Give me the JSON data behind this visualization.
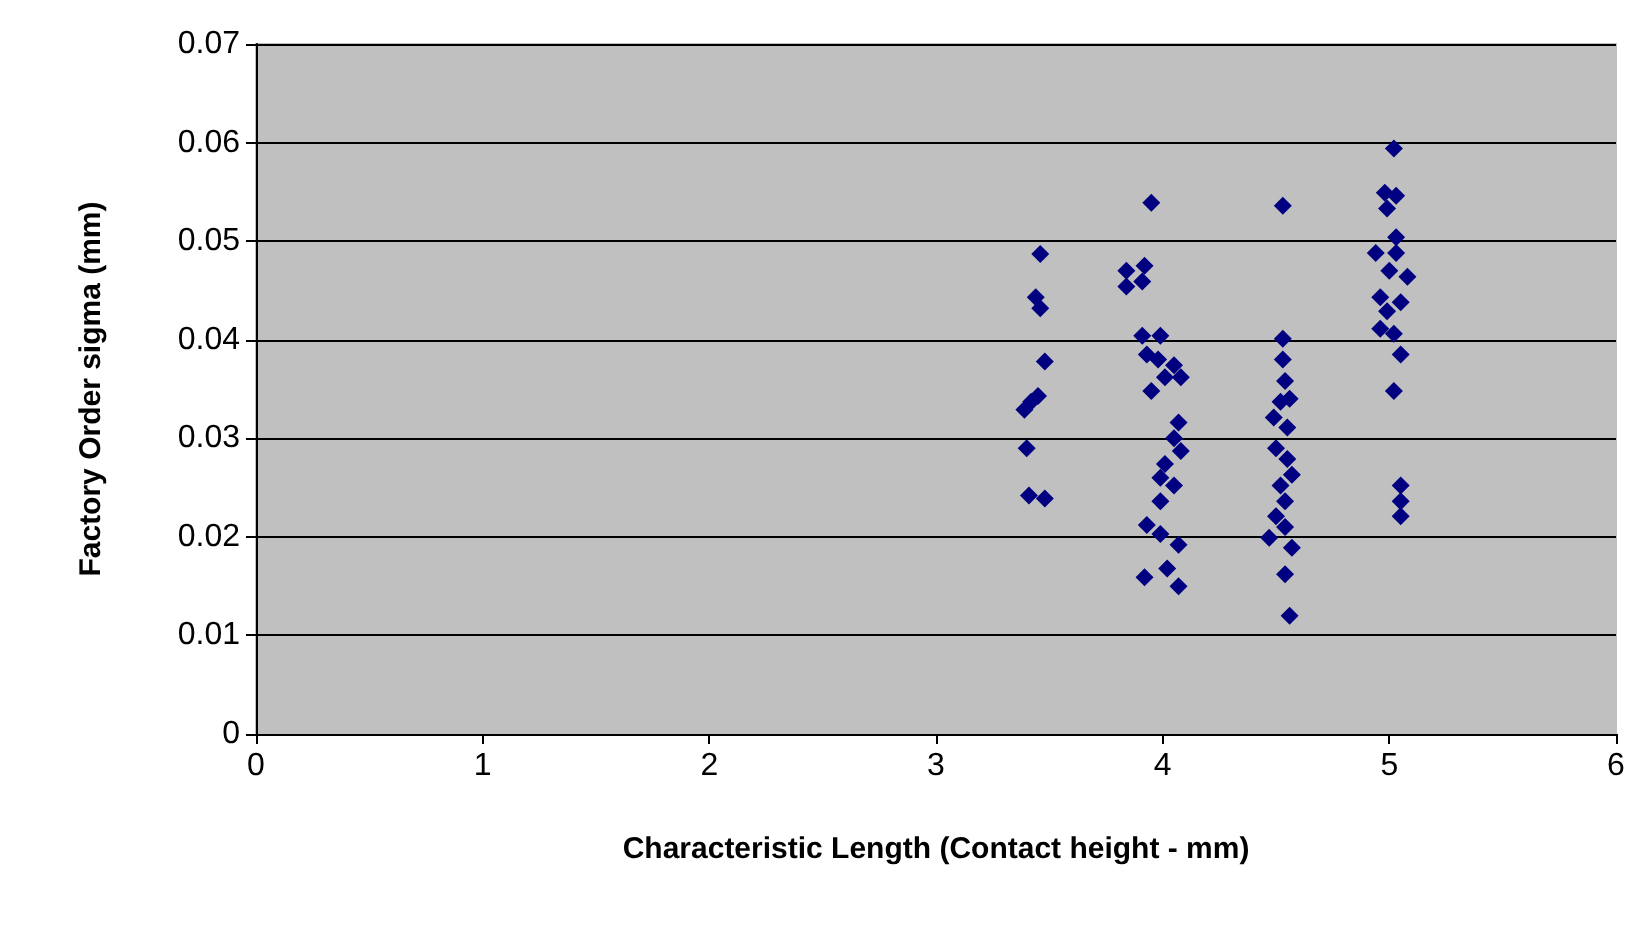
{
  "chart_data": {
    "type": "scatter",
    "xlabel": "Characteristic Length (Contact height - mm)",
    "ylabel": "Factory Order sigma (mm)",
    "series": [
      {
        "color": "#000080",
        "x": [
          3.46,
          3.44,
          3.46,
          3.48,
          3.45,
          3.42,
          3.39,
          3.4,
          3.41,
          3.48,
          3.95,
          3.84,
          3.92,
          3.84,
          3.91,
          3.91,
          3.99,
          3.93,
          3.98,
          4.05,
          4.01,
          4.08,
          3.95,
          4.07,
          4.05,
          4.08,
          4.01,
          3.99,
          4.05,
          3.99,
          3.93,
          3.99,
          4.07,
          4.02,
          3.92,
          4.07,
          4.53,
          4.53,
          4.53,
          4.54,
          4.52,
          4.56,
          4.49,
          4.55,
          4.5,
          4.55,
          4.57,
          4.52,
          4.54,
          4.5,
          4.54,
          4.47,
          4.57,
          4.54,
          4.56,
          5.02,
          4.98,
          5.03,
          4.99,
          5.03,
          4.94,
          5.03,
          5.0,
          5.08,
          4.96,
          5.05,
          4.99,
          4.96,
          5.02,
          5.05,
          5.02,
          5.05,
          5.05,
          5.05
        ],
        "values": [
          0.0487,
          0.0443,
          0.0432,
          0.0378,
          0.0343,
          0.0337,
          0.0329,
          0.029,
          0.0242,
          0.0239,
          0.0539,
          0.047,
          0.0475,
          0.0454,
          0.0459,
          0.0404,
          0.0404,
          0.0385,
          0.038,
          0.0374,
          0.0362,
          0.0362,
          0.0348,
          0.0316,
          0.03,
          0.0287,
          0.0274,
          0.026,
          0.0252,
          0.0236,
          0.0212,
          0.0203,
          0.0192,
          0.0168,
          0.0159,
          0.015,
          0.0536,
          0.0401,
          0.038,
          0.0358,
          0.0337,
          0.034,
          0.0321,
          0.0311,
          0.029,
          0.0279,
          0.0263,
          0.0252,
          0.0236,
          0.0221,
          0.021,
          0.0199,
          0.0189,
          0.0162,
          0.012,
          0.0594,
          0.0549,
          0.0546,
          0.0533,
          0.0504,
          0.0488,
          0.0488,
          0.047,
          0.0464,
          0.0443,
          0.0438,
          0.0429,
          0.0411,
          0.0406,
          0.0385,
          0.0348,
          0.0252,
          0.0236,
          0.0221
        ]
      }
    ],
    "xlim": [
      0,
      6
    ],
    "xticks": [
      0,
      1,
      2,
      3,
      4,
      5,
      6
    ],
    "ylim": [
      0,
      0.07
    ],
    "yticks": [
      0,
      0.01,
      0.02,
      0.03,
      0.04,
      0.05,
      0.06,
      0.07
    ],
    "grid": "y",
    "marker": "diamond"
  }
}
